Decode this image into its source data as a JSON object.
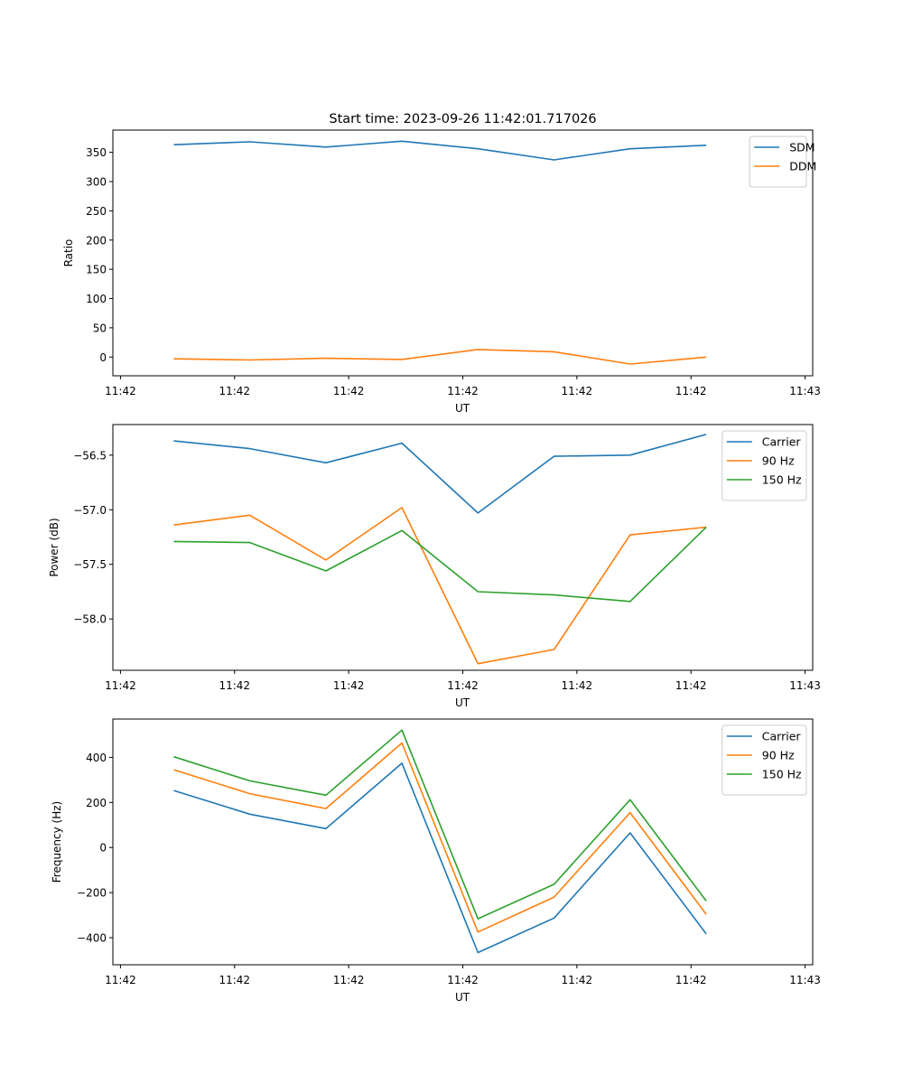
{
  "figure_title": "Start time: 2023-09-26 11:42:01.717026",
  "colors": {
    "blue": "#1f77b4",
    "orange": "#ff7f0e",
    "green": "#2ca02c"
  },
  "chart_data": [
    {
      "type": "line",
      "xlabel": "UT",
      "ylabel": "Ratio",
      "x": [
        1,
        2,
        3,
        4,
        5,
        6,
        7,
        8
      ],
      "xlim": [
        0.2,
        9.4
      ],
      "xticks": [
        0.3,
        1.8,
        3.3,
        4.8,
        6.3,
        7.8,
        9.3
      ],
      "xtick_labels": [
        "11:42",
        "11:42",
        "11:42",
        "11:42",
        "11:42",
        "11:42",
        "11:43"
      ],
      "ylim": [
        -32,
        388
      ],
      "yticks": [
        0,
        50,
        100,
        150,
        200,
        250,
        300,
        350
      ],
      "ytick_labels": [
        "0",
        "50",
        "100",
        "150",
        "200",
        "250",
        "300",
        "350"
      ],
      "legend": "top-right",
      "series": [
        {
          "name": "SDM",
          "color": "#1f77b4",
          "values": [
            363,
            368,
            359,
            369,
            356,
            337,
            356,
            362
          ]
        },
        {
          "name": "DDM",
          "color": "#ff7f0e",
          "values": [
            -3,
            -5,
            -2,
            -4,
            13,
            9,
            -12,
            0
          ]
        }
      ]
    },
    {
      "type": "line",
      "xlabel": "UT",
      "ylabel": "Power (dB)",
      "x": [
        1,
        2,
        3,
        4,
        5,
        6,
        7,
        8
      ],
      "xlim": [
        0.2,
        9.4
      ],
      "xticks": [
        0.3,
        1.8,
        3.3,
        4.8,
        6.3,
        7.8,
        9.3
      ],
      "xtick_labels": [
        "11:42",
        "11:42",
        "11:42",
        "11:42",
        "11:42",
        "11:42",
        "11:43"
      ],
      "ylim": [
        -58.47,
        -56.22
      ],
      "yticks": [
        -58.0,
        -57.5,
        -57.0,
        -56.5
      ],
      "ytick_labels": [
        "−58.0",
        "−57.5",
        "−57.0",
        "−56.5"
      ],
      "legend": "top-right",
      "series": [
        {
          "name": "Carrier",
          "color": "#1f77b4",
          "values": [
            -56.37,
            -56.44,
            -56.57,
            -56.39,
            -57.03,
            -56.51,
            -56.5,
            -56.31
          ]
        },
        {
          "name": "90 Hz",
          "color": "#ff7f0e",
          "values": [
            -57.14,
            -57.05,
            -57.46,
            -56.98,
            -58.41,
            -58.28,
            -57.23,
            -57.16
          ]
        },
        {
          "name": "150 Hz",
          "color": "#2ca02c",
          "values": [
            -57.29,
            -57.3,
            -57.56,
            -57.19,
            -57.75,
            -57.78,
            -57.84,
            -57.16
          ]
        }
      ]
    },
    {
      "type": "line",
      "xlabel": "UT",
      "ylabel": "Frequency (Hz)",
      "x": [
        1,
        2,
        3,
        4,
        5,
        6,
        7,
        8
      ],
      "xlim": [
        0.2,
        9.4
      ],
      "xticks": [
        0.3,
        1.8,
        3.3,
        4.8,
        6.3,
        7.8,
        9.3
      ],
      "xtick_labels": [
        "11:42",
        "11:42",
        "11:42",
        "11:42",
        "11:42",
        "11:42",
        "11:43"
      ],
      "ylim": [
        -520,
        570
      ],
      "yticks": [
        -400,
        -200,
        0,
        200,
        400
      ],
      "ytick_labels": [
        "−400",
        "−200",
        "0",
        "200",
        "400"
      ],
      "legend": "top-right",
      "series": [
        {
          "name": "Carrier",
          "color": "#1f77b4",
          "values": [
            253,
            148,
            84,
            374,
            -466,
            -313,
            65,
            -383
          ]
        },
        {
          "name": "90 Hz",
          "color": "#ff7f0e",
          "values": [
            345,
            239,
            173,
            464,
            -375,
            -220,
            155,
            -296
          ]
        },
        {
          "name": "150 Hz",
          "color": "#2ca02c",
          "values": [
            403,
            296,
            232,
            521,
            -316,
            -163,
            212,
            -237
          ]
        }
      ]
    }
  ]
}
